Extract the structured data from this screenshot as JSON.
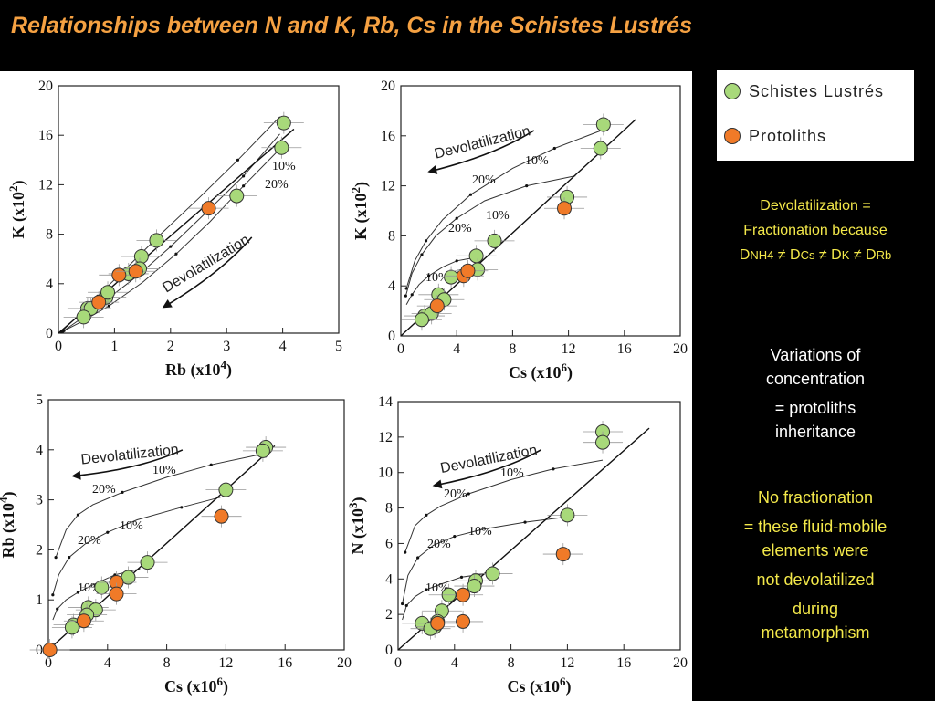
{
  "title": "Relationships between N and K, Rb, Cs in the Schistes Lustrés",
  "legend": {
    "items": [
      {
        "label": "Schistes Lustrés",
        "color": "#a8d97a"
      },
      {
        "label": "Protoliths",
        "color": "#f07a28"
      }
    ]
  },
  "notes": {
    "devol": {
      "line1": "Devolatilization =",
      "line2": "Fractionation because",
      "d1": "D",
      "s1": "NH4",
      "neq1": " ≠ ",
      "d2": "D",
      "s2": "Cs",
      "neq2": " ≠ ",
      "d3": "D",
      "s3": "K",
      "neq3": " ≠ ",
      "d4": "D",
      "s4": "Rb"
    },
    "variations": {
      "line1": "Variations of",
      "line2": "concentration",
      "line3": "= protoliths",
      "line4": "inheritance"
    },
    "no_fractionation": {
      "line1": "No fractionation",
      "line2": "= these fluid-mobile",
      "line3": "elements were",
      "line4": "not devolatilized",
      "line5": "during",
      "line6": "metamorphism"
    }
  },
  "chart_data": [
    {
      "id": "k_rb",
      "type": "scatter",
      "xlabel": "Rb (x10",
      "xlabel_sup": "4",
      "xlabel_end": ")",
      "ylabel": "K (x10",
      "ylabel_sup": "2",
      "ylabel_end": ")",
      "xlim": [
        0,
        5
      ],
      "ylim": [
        0,
        20
      ],
      "xticks": [
        0,
        1,
        2,
        3,
        4,
        5
      ],
      "yticks": [
        0,
        4,
        8,
        12,
        16,
        20
      ],
      "arrow_label": "Devolatilization",
      "line_labels": [
        "10%",
        "20%"
      ],
      "series": [
        {
          "name": "Schistes Lustrés",
          "color": "#a8d97a",
          "points": [
            [
              4.02,
              17.0
            ],
            [
              3.98,
              15.0
            ],
            [
              3.18,
              11.1
            ],
            [
              1.75,
              7.5
            ],
            [
              1.48,
              6.2
            ],
            [
              1.25,
              4.8
            ],
            [
              1.45,
              5.2
            ],
            [
              0.85,
              2.9
            ],
            [
              0.88,
              3.3
            ],
            [
              0.52,
              2.0
            ],
            [
              0.58,
              2.0
            ],
            [
              0.45,
              1.3
            ]
          ]
        },
        {
          "name": "Protoliths",
          "color": "#f07a28",
          "points": [
            [
              2.68,
              10.1
            ],
            [
              1.08,
              4.7
            ],
            [
              1.38,
              5.0
            ],
            [
              0.72,
              2.5
            ]
          ]
        }
      ]
    },
    {
      "id": "k_cs",
      "type": "scatter",
      "xlabel": "Cs (x10",
      "xlabel_sup": "6",
      "xlabel_end": ")",
      "ylabel": "K (x10",
      "ylabel_sup": "2",
      "ylabel_end": ")",
      "xlim": [
        0,
        20
      ],
      "ylim": [
        0,
        20
      ],
      "xticks": [
        0,
        4,
        8,
        12,
        16,
        20
      ],
      "yticks": [
        0,
        4,
        8,
        12,
        16,
        20
      ],
      "arrow_label": "Devolatilization",
      "line_labels": [
        "10%",
        "20%",
        "10%",
        "20%",
        "10%"
      ],
      "series": [
        {
          "name": "Schistes Lustrés",
          "color": "#a8d97a",
          "points": [
            [
              14.5,
              16.9
            ],
            [
              14.3,
              15.0
            ],
            [
              11.9,
              11.1
            ],
            [
              6.7,
              7.6
            ],
            [
              5.4,
              6.4
            ],
            [
              5.5,
              5.3
            ],
            [
              3.6,
              4.7
            ],
            [
              2.7,
              3.3
            ],
            [
              3.1,
              2.9
            ],
            [
              1.7,
              1.6
            ],
            [
              2.2,
              1.8
            ],
            [
              1.5,
              1.3
            ]
          ]
        },
        {
          "name": "Protoliths",
          "color": "#f07a28",
          "points": [
            [
              11.7,
              10.2
            ],
            [
              4.5,
              4.8
            ],
            [
              4.8,
              5.2
            ],
            [
              2.6,
              2.4
            ]
          ]
        }
      ]
    },
    {
      "id": "rb_cs",
      "type": "scatter",
      "xlabel": "Cs (x10",
      "xlabel_sup": "6",
      "xlabel_end": ")",
      "ylabel": "Rb (x10",
      "ylabel_sup": "4",
      "ylabel_end": ")",
      "xlim": [
        0,
        20
      ],
      "ylim": [
        0,
        5
      ],
      "xticks": [
        0,
        4,
        8,
        12,
        16,
        20
      ],
      "yticks": [
        0,
        1,
        2,
        3,
        4,
        5
      ],
      "arrow_label": "Devolatilization",
      "line_labels": [
        "10%",
        "20%",
        "10%",
        "20%",
        "10%"
      ],
      "series": [
        {
          "name": "Schistes Lustrés",
          "color": "#a8d97a",
          "points": [
            [
              14.7,
              4.05
            ],
            [
              14.5,
              3.98
            ],
            [
              12.0,
              3.2
            ],
            [
              6.7,
              1.75
            ],
            [
              5.4,
              1.45
            ],
            [
              3.6,
              1.25
            ],
            [
              2.7,
              0.85
            ],
            [
              3.2,
              0.8
            ],
            [
              1.7,
              0.5
            ],
            [
              1.6,
              0.45
            ],
            [
              2.6,
              0.7
            ]
          ]
        },
        {
          "name": "Protoliths",
          "color": "#f07a28",
          "points": [
            [
              11.7,
              2.67
            ],
            [
              4.6,
              1.35
            ],
            [
              4.6,
              1.12
            ],
            [
              2.4,
              0.58
            ],
            [
              0.1,
              0.0
            ]
          ]
        }
      ]
    },
    {
      "id": "n_cs",
      "type": "scatter",
      "xlabel": "Cs (x10",
      "xlabel_sup": "6",
      "xlabel_end": ")",
      "ylabel": "N (x10",
      "ylabel_sup": "3",
      "ylabel_end": ")",
      "xlim": [
        0,
        20
      ],
      "ylim": [
        0,
        14
      ],
      "xticks": [
        0,
        4,
        8,
        12,
        16,
        20
      ],
      "yticks": [
        0,
        2,
        4,
        6,
        8,
        10,
        12,
        14
      ],
      "arrow_label": "Devolatilization",
      "line_labels": [
        "10%",
        "20%",
        "10%",
        "20%",
        "10%"
      ],
      "series": [
        {
          "name": "Schistes Lustrés",
          "color": "#a8d97a",
          "points": [
            [
              14.5,
              12.3
            ],
            [
              14.5,
              11.7
            ],
            [
              12.0,
              7.6
            ],
            [
              6.7,
              4.3
            ],
            [
              5.5,
              3.9
            ],
            [
              5.4,
              3.6
            ],
            [
              3.6,
              3.1
            ],
            [
              3.1,
              2.2
            ],
            [
              2.8,
              1.6
            ],
            [
              1.7,
              1.5
            ],
            [
              2.6,
              1.3
            ],
            [
              2.3,
              1.2
            ]
          ]
        },
        {
          "name": "Protoliths",
          "color": "#f07a28",
          "points": [
            [
              11.7,
              5.4
            ],
            [
              4.6,
              3.1
            ],
            [
              4.6,
              1.6
            ],
            [
              2.8,
              1.5
            ]
          ]
        }
      ]
    }
  ]
}
